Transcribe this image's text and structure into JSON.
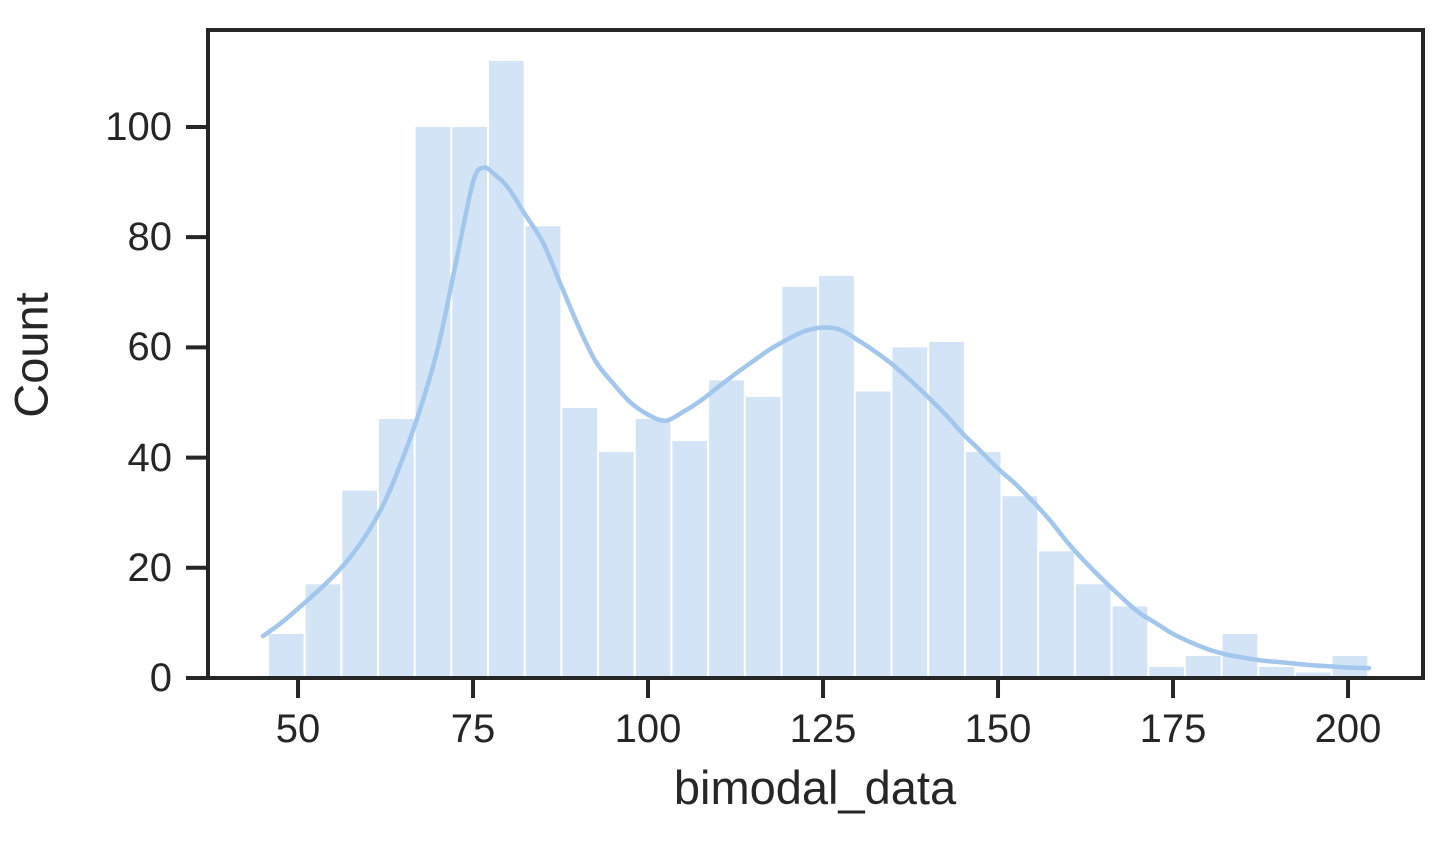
{
  "chart_data": {
    "type": "histogram_with_kde",
    "title": "",
    "xlabel": "bimodal_data",
    "ylabel": "Count",
    "x_ticks": [
      50,
      75,
      100,
      125,
      150,
      175,
      200
    ],
    "y_ticks": [
      0,
      20,
      40,
      60,
      80,
      100
    ],
    "xlim": [
      37.14,
      210.71
    ],
    "ylim": [
      0,
      117.6
    ],
    "grid": false,
    "legend": null,
    "histogram": {
      "bin_start": 45.7,
      "bin_width": 5.24,
      "counts": [
        8,
        17,
        34,
        47,
        100,
        100,
        112,
        82,
        49,
        41,
        47,
        43,
        54,
        51,
        71,
        73,
        52,
        60,
        61,
        41,
        33,
        23,
        17,
        13,
        2,
        4,
        8,
        2,
        1,
        4
      ]
    },
    "kde": {
      "points": [
        [
          45,
          7.6
        ],
        [
          47.5,
          9.9
        ],
        [
          50,
          12.6
        ],
        [
          52.5,
          15.4
        ],
        [
          55,
          18.4
        ],
        [
          57.5,
          22.0
        ],
        [
          60,
          26.5
        ],
        [
          62.5,
          32.3
        ],
        [
          65,
          40.0
        ],
        [
          67.5,
          49.0
        ],
        [
          70,
          60.0
        ],
        [
          72.5,
          75.0
        ],
        [
          75,
          90.0
        ],
        [
          76.5,
          92.6
        ],
        [
          78,
          91.5
        ],
        [
          80,
          89.0
        ],
        [
          82.5,
          84.0
        ],
        [
          85,
          79.0
        ],
        [
          87.5,
          71.5
        ],
        [
          90,
          64.0
        ],
        [
          92.5,
          57.5
        ],
        [
          95,
          53.5
        ],
        [
          97.5,
          50.0
        ],
        [
          100,
          47.8
        ],
        [
          102.5,
          46.7
        ],
        [
          105,
          48.3
        ],
        [
          107.5,
          50.3
        ],
        [
          110,
          52.8
        ],
        [
          112.5,
          55.2
        ],
        [
          115,
          57.5
        ],
        [
          117.5,
          59.7
        ],
        [
          120,
          61.5
        ],
        [
          122.5,
          63.0
        ],
        [
          125,
          63.6
        ],
        [
          127.5,
          63.2
        ],
        [
          130,
          61.3
        ],
        [
          132.5,
          59.2
        ],
        [
          135,
          56.8
        ],
        [
          137.5,
          54.0
        ],
        [
          140,
          51.0
        ],
        [
          142.5,
          47.8
        ],
        [
          145,
          44.3
        ],
        [
          147.5,
          41.2
        ],
        [
          150,
          38.0
        ],
        [
          152.5,
          35.2
        ],
        [
          155,
          32.0
        ],
        [
          157.5,
          28.5
        ],
        [
          160,
          24.5
        ],
        [
          162.5,
          21.0
        ],
        [
          165,
          17.8
        ],
        [
          167.5,
          14.8
        ],
        [
          170,
          12.0
        ],
        [
          172.5,
          10.0
        ],
        [
          175,
          8.0
        ],
        [
          177.5,
          6.5
        ],
        [
          180,
          5.2
        ],
        [
          182.5,
          4.3
        ],
        [
          185,
          3.7
        ],
        [
          187.5,
          3.2
        ],
        [
          190,
          2.9
        ],
        [
          192.5,
          2.6
        ],
        [
          195,
          2.3
        ],
        [
          197.5,
          2.1
        ],
        [
          200,
          1.9
        ],
        [
          203,
          1.8
        ]
      ]
    },
    "colors": {
      "bar_fill": "#d3e4f7",
      "kde_line": "#a2c6ec",
      "axis": "#262626",
      "text": "#262626"
    }
  }
}
